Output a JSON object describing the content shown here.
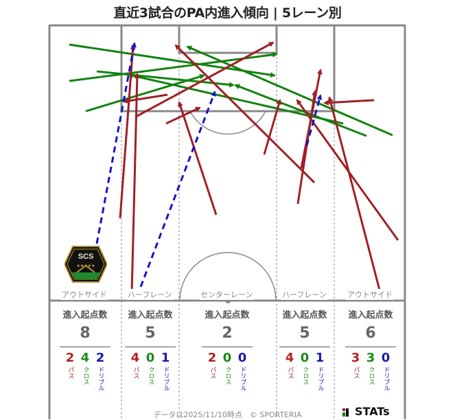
{
  "title": "直近3試合のPA内進入傾向 | 5レーン別",
  "lanes": [
    {
      "label": "アウトサイド",
      "stat_header": "進入起点数",
      "total": "8",
      "pass": "2",
      "cross": "4",
      "dribble": "2"
    },
    {
      "label": "ハーフレーン",
      "stat_header": "進入起点数",
      "total": "5",
      "pass": "4",
      "cross": "0",
      "dribble": "1"
    },
    {
      "label": "センターレーン",
      "stat_header": "進入起点数",
      "total": "2",
      "pass": "2",
      "cross": "0",
      "dribble": "0"
    },
    {
      "label": "ハーフレーン",
      "stat_header": "進入起点数",
      "total": "5",
      "pass": "4",
      "cross": "0",
      "dribble": "1"
    },
    {
      "label": "アウトサイド",
      "stat_header": "進入起点数",
      "total": "6",
      "pass": "3",
      "cross": "3",
      "dribble": "0"
    }
  ],
  "legend_words": {
    "pass": "パス",
    "cross": "クロス",
    "dribble": "ドリブル"
  },
  "colors": {
    "pass": "#a11f24",
    "cross": "#12820f",
    "dribble": "#1414c8",
    "pitch_line": "#888888"
  },
  "logo_text": "SCS",
  "footer": "データは2025/11/10時点　© SPORTERIA",
  "brand": "STATs"
}
